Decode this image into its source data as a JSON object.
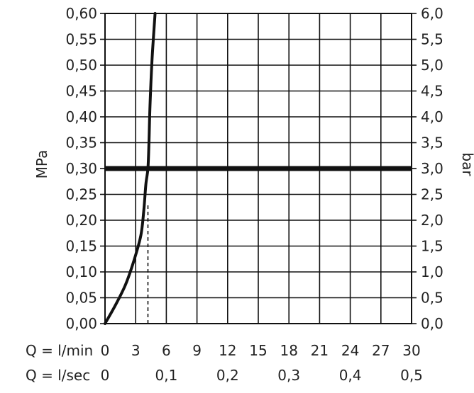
{
  "chart_data": {
    "type": "line",
    "title": "",
    "ylabel_left": "MPa",
    "ylabel_right": "bar",
    "xlabel_rows": [
      {
        "label": "Q = l/min",
        "ticks": [
          "0",
          "3",
          "6",
          "9",
          "12",
          "15",
          "18",
          "21",
          "24",
          "27",
          "30"
        ],
        "values": [
          0,
          3,
          6,
          9,
          12,
          15,
          18,
          21,
          24,
          27,
          30
        ]
      },
      {
        "label": "Q = l/sec",
        "ticks": [
          "0",
          "0,1",
          "0,2",
          "0,3",
          "0,4",
          "0,5"
        ],
        "values": [
          0,
          6,
          12,
          18,
          24,
          30
        ]
      }
    ],
    "xlim": [
      0,
      30
    ],
    "ylim": [
      0,
      0.6
    ],
    "y_left_ticks": [
      "0,00",
      "0,05",
      "0,10",
      "0,15",
      "0,20",
      "0,25",
      "0,30",
      "0,35",
      "0,40",
      "0,45",
      "0,50",
      "0,55",
      "0,60"
    ],
    "y_right_ticks": [
      "0,0",
      "0,5",
      "1,0",
      "1,5",
      "2,0",
      "2,5",
      "3,0",
      "3,5",
      "4,0",
      "4,5",
      "5,0",
      "5,5",
      "6,0"
    ],
    "grid": true,
    "series": [
      {
        "x": [
          0,
          1,
          2,
          2.8,
          3.5,
          3.8,
          4.0,
          4.2,
          4.3,
          4.4,
          4.6,
          4.9
        ],
        "y": [
          0,
          0.035,
          0.075,
          0.12,
          0.17,
          0.22,
          0.27,
          0.3,
          0.35,
          0.42,
          0.51,
          0.6
        ]
      }
    ],
    "reference_line": {
      "y": 0.3
    },
    "marker_line": {
      "x": 4.2,
      "from_y": 0,
      "to_y": 0.23
    }
  }
}
